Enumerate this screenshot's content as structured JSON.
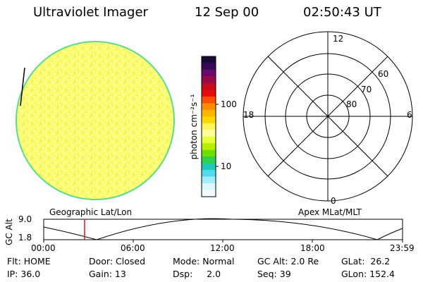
{
  "header": {
    "instrument": "Ultraviolet Imager",
    "date": "12 Sep 00",
    "time": "02:50:43 UT"
  },
  "colorbar": {
    "label": "photon cm⁻²s⁻¹",
    "ticks": [
      "100",
      "10"
    ],
    "colors": [
      "#1a0a3c",
      "#3a0a5a",
      "#6a0a6a",
      "#9a0a4a",
      "#c80a1e",
      "#e60a0a",
      "#ff4a00",
      "#ff8c00",
      "#ffb400",
      "#ffd800",
      "#fff35a",
      "#ffff9a",
      "#e6ff3a",
      "#b4f000",
      "#6ae000",
      "#2ad24a",
      "#1ec8b4",
      "#50dcf0",
      "#a0ecf8",
      "#dcf6fa",
      "#f4fbfc"
    ]
  },
  "polar_plot": {
    "labels": {
      "top": "12",
      "bottom": "0",
      "left": "18",
      "right": "6"
    },
    "rings": [
      "60",
      "70",
      "80"
    ]
  },
  "timeline": {
    "left_title": "Geographic Lat/Lon",
    "right_title": "Apex MLat/MLT",
    "axis_label": "GC Alt",
    "y_ticks": [
      "9.0",
      "1.8"
    ],
    "x_ticks": [
      "00:00",
      "06:00",
      "12:00",
      "18:00",
      "23:59"
    ],
    "marker_time": "02:50"
  },
  "footer": {
    "row1": {
      "flt": "Flt: HOME",
      "door": "Door: Closed",
      "mode": "Mode: Normal",
      "gcalt": "GC Alt: 2.0 Re",
      "glat": "GLat:  26.2"
    },
    "row2": {
      "ip": "IP: 36.0",
      "gain": "Gain: 13",
      "dsp": "Dsp:     2.0",
      "seq": "Seq: 39",
      "glon": "GLon: 152.4"
    }
  }
}
